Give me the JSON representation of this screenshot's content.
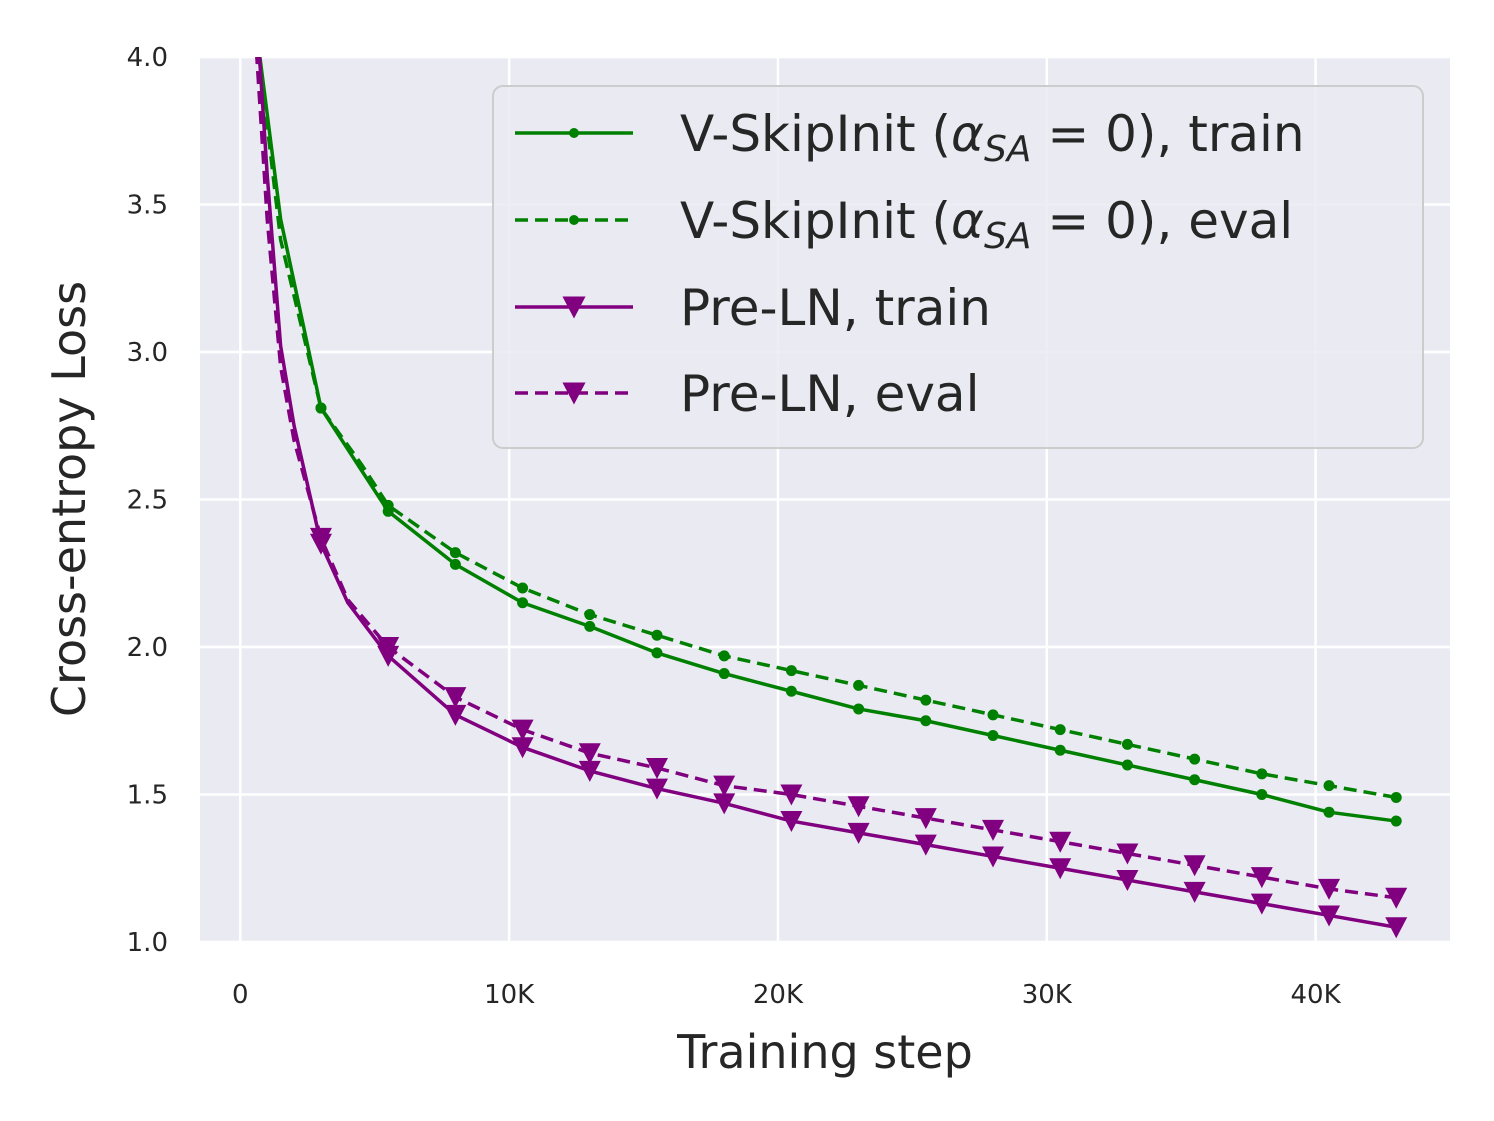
{
  "chart_data": {
    "type": "line",
    "title": "",
    "xlabel": "Training step",
    "ylabel": "Cross-entropy Loss",
    "xlim": [
      -1500,
      45000
    ],
    "ylim": [
      1.0,
      4.0
    ],
    "xticks": [
      {
        "value": 0,
        "label": "0"
      },
      {
        "value": 10000,
        "label": "10K"
      },
      {
        "value": 20000,
        "label": "20K"
      },
      {
        "value": 30000,
        "label": "30K"
      },
      {
        "value": 40000,
        "label": "40K"
      }
    ],
    "yticks": [
      {
        "value": 1.0,
        "label": "1.0"
      },
      {
        "value": 1.5,
        "label": "1.5"
      },
      {
        "value": 2.0,
        "label": "2.0"
      },
      {
        "value": 2.5,
        "label": "2.5"
      },
      {
        "value": 3.0,
        "label": "3.0"
      },
      {
        "value": 3.5,
        "label": "3.5"
      },
      {
        "value": 4.0,
        "label": "4.0"
      }
    ],
    "grid": true,
    "legend_position": "top-right",
    "series": [
      {
        "name": "V-SkipInit (αSA = 0), train",
        "legend_prefix": "V-SkipInit (",
        "legend_math_var": "α",
        "legend_math_sub": "SA",
        "legend_math_rest": " = 0), train",
        "color": "#008000",
        "dash": "solid",
        "marker": "dot",
        "x": [
          700,
          1500,
          3000,
          4500,
          5500,
          8000,
          10500,
          13000,
          15500,
          18000,
          20500,
          23000,
          25500,
          28000,
          30500,
          33000,
          35500,
          38000,
          40500,
          43000
        ],
        "y": [
          4.02,
          3.45,
          2.81,
          2.6,
          2.46,
          2.28,
          2.15,
          2.07,
          1.98,
          1.91,
          1.85,
          1.79,
          1.75,
          1.7,
          1.65,
          1.6,
          1.55,
          1.5,
          1.44,
          1.41
        ],
        "marker_x": [
          3000,
          5500,
          8000,
          10500,
          13000,
          15500,
          18000,
          20500,
          23000,
          25500,
          28000,
          30500,
          33000,
          35500,
          38000,
          40500,
          43000
        ]
      },
      {
        "name": "V-SkipInit (αSA = 0), eval",
        "legend_prefix": "V-SkipInit (",
        "legend_math_var": "α",
        "legend_math_sub": "SA",
        "legend_math_rest": " = 0), eval",
        "color": "#008000",
        "dash": "dashed",
        "marker": "dot",
        "x": [
          700,
          1500,
          3000,
          4500,
          5500,
          8000,
          10500,
          13000,
          15500,
          18000,
          20500,
          23000,
          25500,
          28000,
          30500,
          33000,
          35500,
          38000,
          40500,
          43000
        ],
        "y": [
          4.0,
          3.38,
          2.81,
          2.62,
          2.48,
          2.32,
          2.2,
          2.11,
          2.04,
          1.97,
          1.92,
          1.87,
          1.82,
          1.77,
          1.72,
          1.67,
          1.62,
          1.57,
          1.53,
          1.49
        ],
        "marker_x": [
          3000,
          5500,
          8000,
          10500,
          13000,
          15500,
          18000,
          20500,
          23000,
          25500,
          28000,
          30500,
          33000,
          35500,
          38000,
          40500,
          43000
        ]
      },
      {
        "name": "Pre-LN, train",
        "legend_prefix": "Pre-LN, train",
        "color": "#800080",
        "dash": "solid",
        "marker": "triangle-down",
        "x": [
          700,
          1000,
          1500,
          2000,
          3000,
          4000,
          5500,
          8000,
          10500,
          13000,
          15500,
          18000,
          20500,
          23000,
          25500,
          28000,
          30500,
          33000,
          35500,
          38000,
          40500,
          43000
        ],
        "y": [
          4.02,
          3.6,
          3.02,
          2.75,
          2.35,
          2.15,
          1.97,
          1.77,
          1.66,
          1.58,
          1.52,
          1.47,
          1.41,
          1.37,
          1.33,
          1.29,
          1.25,
          1.21,
          1.17,
          1.13,
          1.09,
          1.05
        ],
        "marker_x": [
          3000,
          5500,
          8000,
          10500,
          13000,
          15500,
          18000,
          20500,
          23000,
          25500,
          28000,
          30500,
          33000,
          35500,
          38000,
          40500,
          43000
        ]
      },
      {
        "name": "Pre-LN, eval",
        "legend_prefix": "Pre-LN, eval",
        "color": "#800080",
        "dash": "dashed",
        "marker": "triangle-down",
        "x": [
          600,
          1000,
          1500,
          2000,
          3000,
          4000,
          5500,
          8000,
          10500,
          13000,
          15500,
          18000,
          20500,
          23000,
          25500,
          28000,
          30500,
          33000,
          35500,
          38000,
          40500,
          43000
        ],
        "y": [
          4.02,
          3.45,
          2.95,
          2.7,
          2.37,
          2.16,
          2.0,
          1.83,
          1.72,
          1.64,
          1.59,
          1.53,
          1.5,
          1.46,
          1.42,
          1.38,
          1.34,
          1.3,
          1.26,
          1.22,
          1.18,
          1.15
        ],
        "marker_x": [
          3000,
          5500,
          8000,
          10500,
          13000,
          15500,
          18000,
          20500,
          23000,
          25500,
          28000,
          30500,
          33000,
          35500,
          38000,
          40500,
          43000
        ]
      }
    ]
  }
}
